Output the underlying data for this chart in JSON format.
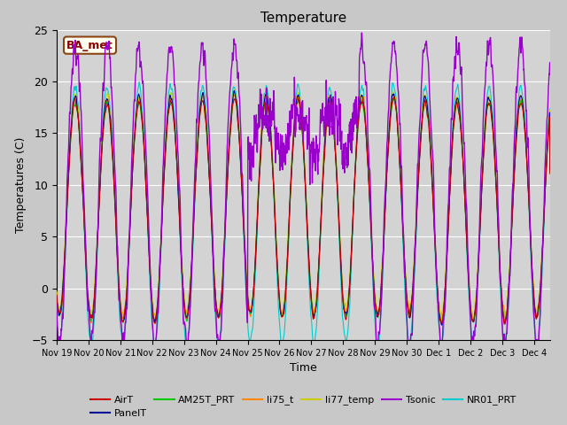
{
  "title": "Temperature",
  "ylabel": "Temperatures (C)",
  "xlabel": "Time",
  "ylim": [
    -5,
    25
  ],
  "annotation_text": "BA_met",
  "background_color": "#e8e8e8",
  "series": {
    "AirT": {
      "color": "#cc0000",
      "lw": 0.8
    },
    "PanelT": {
      "color": "#000099",
      "lw": 0.8
    },
    "AM25T_PRT": {
      "color": "#00cc00",
      "lw": 0.8
    },
    "li75_t": {
      "color": "#ff8800",
      "lw": 0.8
    },
    "li77_temp": {
      "color": "#cccc00",
      "lw": 0.8
    },
    "Tsonic": {
      "color": "#9900cc",
      "lw": 1.0
    },
    "NR01_PRT": {
      "color": "#00cccc",
      "lw": 0.8
    }
  },
  "xtick_labels": [
    "Nov 19",
    "Nov 20",
    "Nov 21",
    "Nov 22",
    "Nov 23",
    "Nov 24",
    "Nov 25",
    "Nov 26",
    "Nov 27",
    "Nov 28",
    "Nov 29",
    "Nov 30",
    "Dec 1",
    "Dec 2",
    "Dec 3",
    "Dec 4"
  ],
  "n_days": 15.5,
  "pts_per_day": 144,
  "grid_color": "#ffffff",
  "plot_bg": "#d3d3d3"
}
